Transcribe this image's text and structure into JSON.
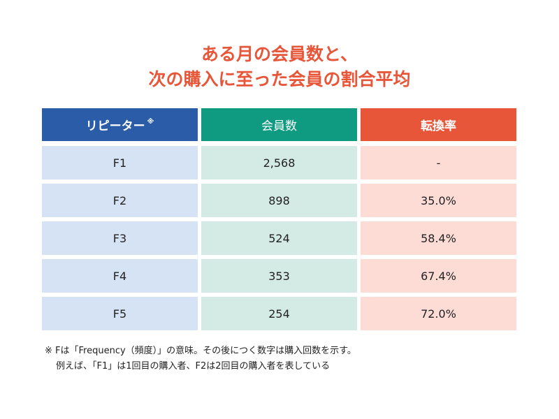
{
  "title": {
    "line1": "ある月の会員数と、",
    "line2": "次の購入に至った会員の割合平均"
  },
  "chart_data": {
    "type": "table",
    "columns": [
      "リピーター",
      "会員数",
      "転換率"
    ],
    "header_mark": "※",
    "rows": [
      {
        "label": "F1",
        "members": "2,568",
        "rate": "-"
      },
      {
        "label": "F2",
        "members": "898",
        "rate": "35.0%"
      },
      {
        "label": "F3",
        "members": "524",
        "rate": "58.4%"
      },
      {
        "label": "F4",
        "members": "353",
        "rate": "67.4%"
      },
      {
        "label": "F5",
        "members": "254",
        "rate": "72.0%"
      }
    ],
    "colors": {
      "header_repeater": "#2b5ca8",
      "header_members": "#0f9a82",
      "header_rate": "#e8563a",
      "body_repeater": "#d6e3f5",
      "body_members": "#d3ebe4",
      "body_rate": "#fddcd6",
      "title": "#e8563a"
    }
  },
  "note": {
    "line1": "※ Fは「Frequency（頻度）」の意味。その後につく数字は購入回数を示す。",
    "line2": "例えば、「F1」は1回目の購入者、F2は2回目の購入者を表している"
  }
}
